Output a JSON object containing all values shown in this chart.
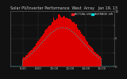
{
  "title": "Solar PV/Inverter Performance  West  Array   Jan 19, 13",
  "legend_actual": "ACTUAL kW",
  "legend_average": "AVERAGE kW",
  "background_color": "#111111",
  "plot_bg_color": "#111111",
  "bar_color": "#dd0000",
  "avg_line_color": "#00dddd",
  "actual_legend_color": "#ff2222",
  "average_legend_color": "#2222ff",
  "num_points": 144,
  "title_fontsize": 3.5,
  "tick_fontsize": 2.8
}
